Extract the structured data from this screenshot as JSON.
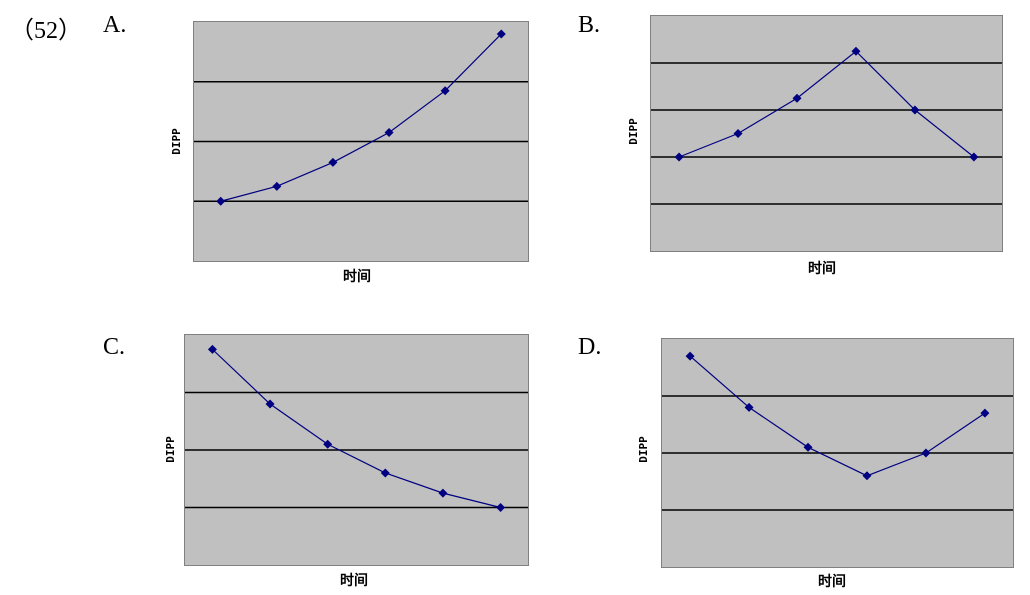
{
  "question_number": "（52）",
  "chart_data": [
    {
      "label": "A.",
      "type": "line",
      "xlabel": "时间",
      "ylabel": "DIPP",
      "x": [
        1,
        2,
        3,
        4,
        5,
        6
      ],
      "series": [
        {
          "values": [
            1.0,
            1.25,
            1.65,
            2.15,
            2.85,
            3.8
          ]
        }
      ],
      "ylim": [
        0.0,
        4.0
      ],
      "gridlines": [
        1,
        2,
        3
      ],
      "color": "#000080",
      "plot_bg": "#c0c0c0"
    },
    {
      "label": "B.",
      "type": "line",
      "xlabel": "时间",
      "ylabel": "DIPP",
      "x": [
        1,
        2,
        3,
        4,
        5,
        6
      ],
      "series": [
        {
          "values": [
            2.0,
            2.5,
            3.25,
            4.25,
            3.0,
            2.0
          ]
        }
      ],
      "ylim": [
        0.0,
        5.0
      ],
      "gridlines": [
        1,
        2,
        3,
        4
      ],
      "color": "#000080",
      "plot_bg": "#c0c0c0"
    },
    {
      "label": "C.",
      "type": "line",
      "xlabel": "时间",
      "ylabel": "DIPP",
      "x": [
        1,
        2,
        3,
        4,
        5,
        6
      ],
      "series": [
        {
          "values": [
            3.75,
            2.8,
            2.1,
            1.6,
            1.25,
            1.0
          ]
        }
      ],
      "ylim": [
        0.0,
        4.0
      ],
      "gridlines": [
        1,
        2,
        3
      ],
      "color": "#000080",
      "plot_bg": "#c0c0c0"
    },
    {
      "label": "D.",
      "type": "line",
      "xlabel": "时间",
      "ylabel": "DIPP",
      "x": [
        1,
        2,
        3,
        4,
        5,
        6
      ],
      "series": [
        {
          "values": [
            3.7,
            2.8,
            2.1,
            1.6,
            2.0,
            2.7
          ]
        }
      ],
      "ylim": [
        0.0,
        4.0
      ],
      "gridlines": [
        1,
        2,
        3
      ],
      "color": "#000080",
      "plot_bg": "#c0c0c0"
    }
  ]
}
